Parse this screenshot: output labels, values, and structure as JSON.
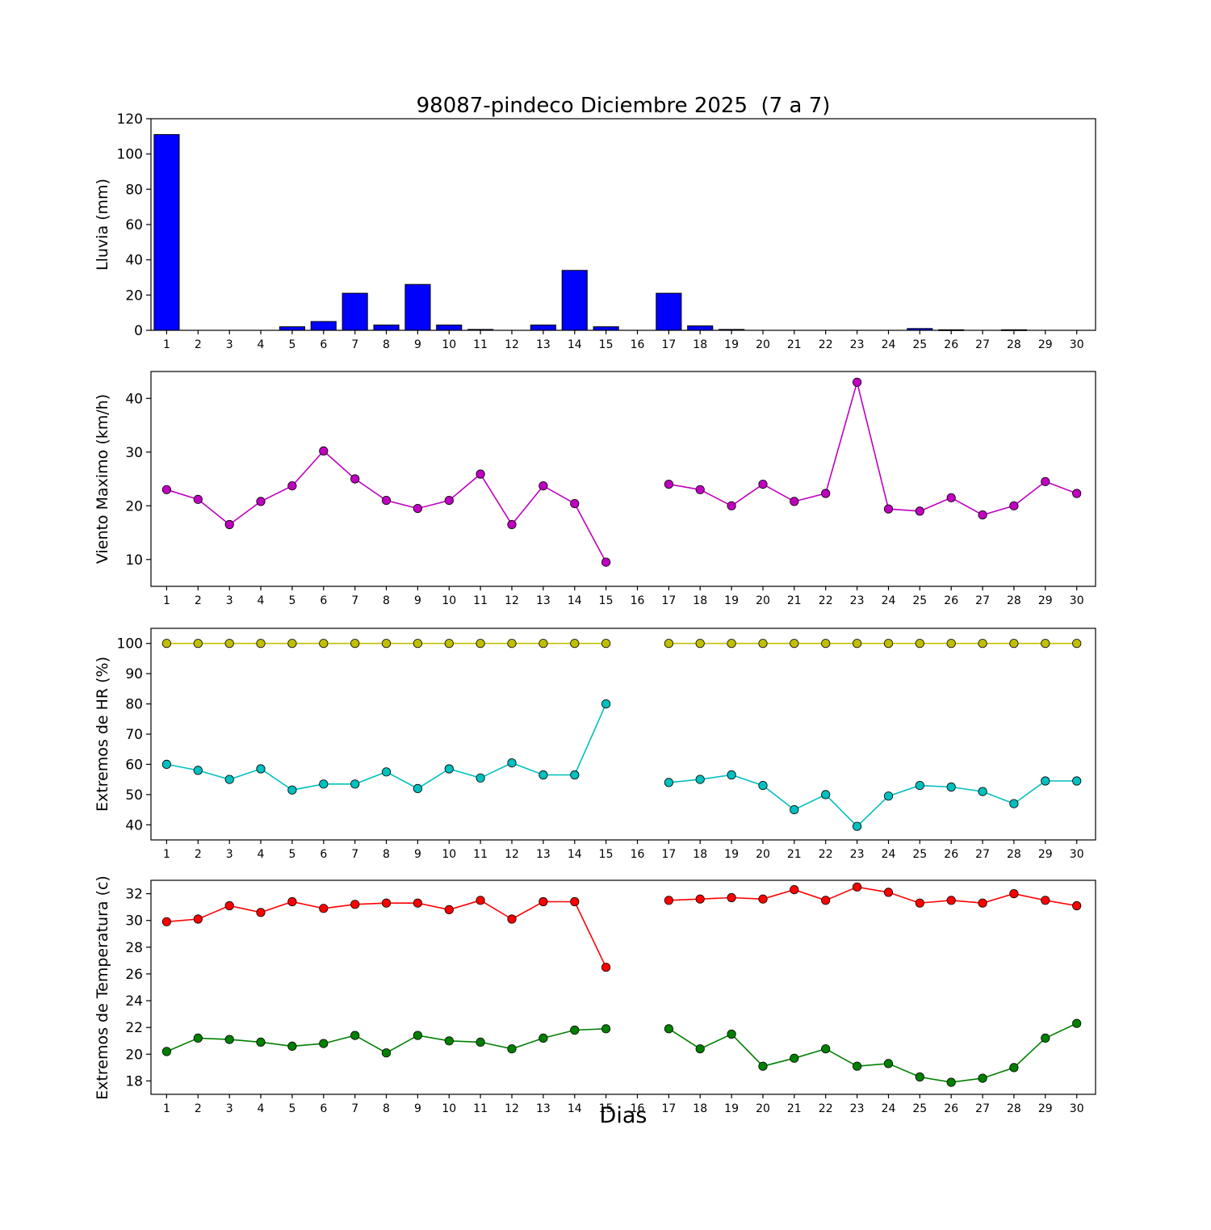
{
  "chart_data": {
    "type": "line",
    "title": "98087-pindeco Diciembre 2025  (7 a 7)",
    "xlabel": "Dias",
    "x": [
      1,
      2,
      3,
      4,
      5,
      6,
      7,
      8,
      9,
      10,
      11,
      12,
      13,
      14,
      15,
      16,
      17,
      18,
      19,
      20,
      21,
      22,
      23,
      24,
      25,
      26,
      27,
      28,
      29,
      30
    ],
    "panels": [
      {
        "name": "lluvia",
        "type": "bar",
        "ylabel": "Lluvia (mm)",
        "ylim": [
          0,
          120
        ],
        "yticks": [
          0,
          20,
          40,
          60,
          80,
          100,
          120
        ],
        "series": [
          {
            "name": "lluvia-mm",
            "color": "#0000ff",
            "values": [
              111,
              0,
              0,
              0,
              2,
              5,
              21,
              3,
              26,
              3,
              0.5,
              0,
              3,
              34,
              2,
              0,
              21,
              2.5,
              0.5,
              0,
              0,
              0,
              0,
              0,
              1,
              0.3,
              0,
              0.3,
              0,
              0
            ]
          }
        ]
      },
      {
        "name": "viento",
        "type": "line",
        "ylabel": "Viento Maximo (km/h)",
        "ylim": [
          5,
          45
        ],
        "yticks": [
          10,
          20,
          30,
          40
        ],
        "series": [
          {
            "name": "viento-maximo",
            "color": "#bf00bf",
            "values": [
              23,
              21.2,
              16.5,
              20.8,
              23.7,
              30.2,
              25,
              21,
              19.5,
              21,
              25.9,
              16.5,
              23.7,
              20.4,
              9.5,
              null,
              24,
              23,
              20,
              24,
              20.8,
              22.3,
              43,
              19.4,
              19,
              21.5,
              18.3,
              20,
              24.5,
              22.3
            ]
          }
        ]
      },
      {
        "name": "hr",
        "type": "line",
        "ylabel": "Extremos de HR (%)",
        "ylim": [
          35,
          105
        ],
        "yticks": [
          40,
          50,
          60,
          70,
          80,
          90,
          100
        ],
        "series": [
          {
            "name": "hr-max",
            "color": "#bfbf00",
            "values": [
              100,
              100,
              100,
              100,
              100,
              100,
              100,
              100,
              100,
              100,
              100,
              100,
              100,
              100,
              100,
              null,
              100,
              100,
              100,
              100,
              100,
              100,
              100,
              100,
              100,
              100,
              100,
              100,
              100,
              100
            ]
          },
          {
            "name": "hr-min",
            "color": "#00bfbf",
            "values": [
              60,
              58,
              55,
              58.5,
              51.5,
              53.5,
              53.5,
              57.5,
              52,
              58.5,
              55.5,
              60.5,
              56.5,
              56.5,
              80,
              null,
              54,
              55,
              56.5,
              53,
              45,
              50,
              39.5,
              49.5,
              53,
              52.5,
              51,
              47,
              54.5,
              54.5
            ]
          }
        ]
      },
      {
        "name": "temperatura",
        "type": "line",
        "ylabel": "Extremos de Temperatura (c)",
        "ylim": [
          17,
          33
        ],
        "yticks": [
          18,
          20,
          22,
          24,
          26,
          28,
          30,
          32
        ],
        "series": [
          {
            "name": "temperatura-max",
            "color": "#ff0000",
            "values": [
              29.9,
              30.1,
              31.1,
              30.6,
              31.4,
              30.9,
              31.2,
              31.3,
              31.3,
              30.8,
              31.5,
              30.1,
              31.4,
              31.4,
              26.5,
              null,
              31.5,
              31.6,
              31.7,
              31.6,
              32.3,
              31.5,
              32.5,
              32.1,
              31.3,
              31.5,
              31.3,
              32,
              31.5,
              31.1
            ]
          },
          {
            "name": "temperatura-min",
            "color": "#008000",
            "values": [
              20.2,
              21.2,
              21.1,
              20.9,
              20.6,
              20.8,
              21.4,
              20.1,
              21.4,
              21,
              20.9,
              20.4,
              21.2,
              21.8,
              21.9,
              null,
              21.9,
              20.4,
              21.5,
              19.1,
              19.7,
              20.4,
              19.1,
              19.3,
              18.3,
              17.9,
              18.2,
              19,
              21.2,
              22.3
            ]
          }
        ]
      }
    ]
  }
}
